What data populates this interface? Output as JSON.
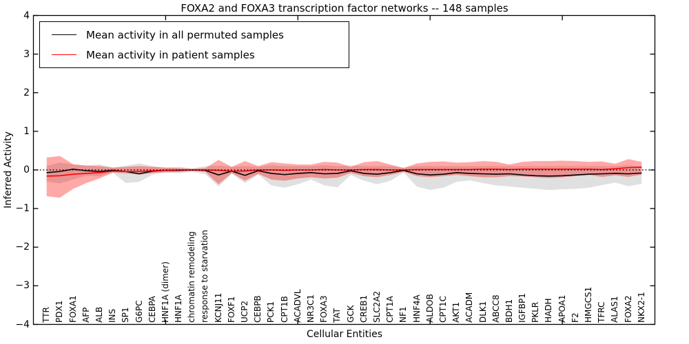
{
  "title": "FOXA2 and FOXA3 transcription factor networks -- 148 samples",
  "legend": {
    "entries": [
      {
        "label": "Mean activity in all permuted samples",
        "color": "#000000"
      },
      {
        "label": "Mean activity in patient samples",
        "color": "#ff0000"
      }
    ],
    "position": "upper left"
  },
  "axes": {
    "ylabel": "Inferred Activity",
    "xlabel": "Cellular Entities",
    "yticks": [
      -4,
      -3,
      -2,
      -1,
      0,
      1,
      2,
      3,
      4
    ],
    "xticks_unlabeled": [
      10,
      20,
      30,
      40
    ],
    "ylim": [
      -4,
      4
    ],
    "xlim": [
      0,
      47
    ]
  },
  "chart_data": {
    "type": "line",
    "title": "FOXA2 and FOXA3 transcription factor networks -- 148 samples",
    "xlabel": "Cellular Entities",
    "ylabel": "Inferred Activity",
    "ylim": [
      -4,
      4
    ],
    "grid": false,
    "legend_position": "upper left",
    "categories": [
      "TTR",
      "PDX1",
      "FOXA1",
      "AFP",
      "ALB",
      "INS",
      "SP1",
      "G6PC",
      "CEBPA",
      "HNF1A (dimer)",
      "HNF1A",
      "chromatin remodeling",
      "response to starvation",
      "KCNJ11",
      "FOXF1",
      "UCP2",
      "CEBPB",
      "PCK1",
      "CPT1B",
      "ACADVL",
      "NR3C1",
      "FOXA3",
      "TAT",
      "GCK",
      "CREB1",
      "SLC2A2",
      "CPT1A",
      "NF1",
      "HNF4A",
      "ALDOB",
      "CPT1C",
      "AKT1",
      "ACADM",
      "DLK1",
      "ABCC8",
      "BDH1",
      "IGFBP1",
      "PKLR",
      "HADH",
      "APOA1",
      "F2",
      "HMGCS1",
      "TFRC",
      "ALAS1",
      "FOXA2",
      "NKX2-1"
    ],
    "series": [
      {
        "name": "Mean activity in all permuted samples",
        "color": "#000000",
        "line": "solid",
        "values": [
          -0.07,
          -0.04,
          0.02,
          -0.02,
          -0.04,
          -0.01,
          -0.04,
          -0.1,
          -0.03,
          -0.01,
          -0.01,
          0.0,
          -0.01,
          -0.13,
          -0.03,
          -0.14,
          -0.02,
          -0.09,
          -0.12,
          -0.09,
          -0.07,
          -0.1,
          -0.09,
          -0.02,
          -0.09,
          -0.11,
          -0.07,
          -0.01,
          -0.1,
          -0.13,
          -0.11,
          -0.07,
          -0.09,
          -0.1,
          -0.11,
          -0.1,
          -0.13,
          -0.15,
          -0.16,
          -0.15,
          -0.13,
          -0.11,
          -0.1,
          -0.09,
          -0.1,
          -0.08
        ]
      },
      {
        "name": "Mean activity in patient samples",
        "color": "#ff0000",
        "line": "solid",
        "values": [
          -0.16,
          -0.15,
          -0.11,
          -0.09,
          -0.07,
          -0.03,
          -0.04,
          -0.04,
          -0.02,
          -0.01,
          0.0,
          0.0,
          0.0,
          -0.01,
          -0.03,
          -0.03,
          0.0,
          0.0,
          -0.01,
          0.0,
          0.0,
          0.01,
          0.0,
          0.0,
          0.01,
          0.01,
          0.0,
          0.0,
          0.01,
          0.01,
          0.01,
          0.01,
          0.01,
          0.02,
          0.02,
          0.01,
          0.02,
          0.02,
          0.02,
          0.02,
          0.02,
          0.02,
          0.01,
          0.03,
          0.06,
          0.07
        ]
      }
    ],
    "bands": [
      {
        "name": "Permuted samples range",
        "color": "#999999",
        "opacity": 0.3,
        "upper": [
          0.1,
          0.19,
          0.14,
          0.12,
          0.14,
          0.06,
          0.11,
          0.17,
          0.1,
          0.06,
          0.08,
          0.04,
          0.1,
          0.11,
          0.08,
          0.1,
          0.08,
          0.12,
          0.1,
          0.1,
          0.1,
          0.12,
          0.1,
          0.12,
          0.1,
          0.1,
          0.1,
          0.06,
          0.1,
          0.1,
          0.1,
          0.1,
          0.1,
          0.1,
          0.1,
          0.1,
          0.1,
          0.1,
          0.1,
          0.1,
          0.1,
          0.1,
          0.1,
          0.1,
          0.12,
          0.1
        ],
        "lower": [
          -0.3,
          -0.35,
          -0.25,
          -0.15,
          -0.16,
          -0.07,
          -0.34,
          -0.31,
          -0.12,
          -0.07,
          -0.09,
          -0.05,
          -0.11,
          -0.43,
          -0.1,
          -0.34,
          -0.12,
          -0.4,
          -0.46,
          -0.37,
          -0.25,
          -0.4,
          -0.45,
          -0.13,
          -0.28,
          -0.37,
          -0.28,
          -0.07,
          -0.43,
          -0.52,
          -0.46,
          -0.31,
          -0.27,
          -0.34,
          -0.4,
          -0.43,
          -0.46,
          -0.49,
          -0.52,
          -0.5,
          -0.49,
          -0.46,
          -0.39,
          -0.33,
          -0.42,
          -0.36
        ]
      },
      {
        "name": "Patient samples range",
        "color": "#ff0000",
        "opacity": 0.34,
        "upper": [
          0.32,
          0.36,
          0.15,
          0.11,
          0.1,
          0.06,
          0.08,
          0.1,
          0.08,
          0.06,
          0.05,
          0.03,
          0.05,
          0.26,
          0.08,
          0.23,
          0.1,
          0.2,
          0.17,
          0.14,
          0.14,
          0.21,
          0.19,
          0.08,
          0.2,
          0.23,
          0.14,
          0.05,
          0.17,
          0.21,
          0.22,
          0.19,
          0.2,
          0.23,
          0.21,
          0.14,
          0.21,
          0.23,
          0.23,
          0.24,
          0.23,
          0.21,
          0.22,
          0.16,
          0.28,
          0.21
        ],
        "lower": [
          -0.68,
          -0.72,
          -0.49,
          -0.34,
          -0.22,
          -0.07,
          -0.09,
          -0.12,
          -0.08,
          -0.06,
          -0.05,
          -0.03,
          -0.05,
          -0.37,
          -0.08,
          -0.28,
          -0.1,
          -0.25,
          -0.28,
          -0.22,
          -0.19,
          -0.22,
          -0.2,
          -0.08,
          -0.16,
          -0.19,
          -0.13,
          -0.05,
          -0.16,
          -0.19,
          -0.16,
          -0.13,
          -0.16,
          -0.19,
          -0.19,
          -0.16,
          -0.17,
          -0.19,
          -0.21,
          -0.19,
          -0.16,
          -0.13,
          -0.18,
          -0.14,
          -0.18,
          -0.12
        ]
      }
    ],
    "reference_line": {
      "y": 0,
      "style": "dotted",
      "color": "#000000"
    }
  },
  "colors": {
    "frame": "#000000",
    "background": "#ffffff",
    "permuted_line": "#000000",
    "patient_line": "#ff0000"
  }
}
